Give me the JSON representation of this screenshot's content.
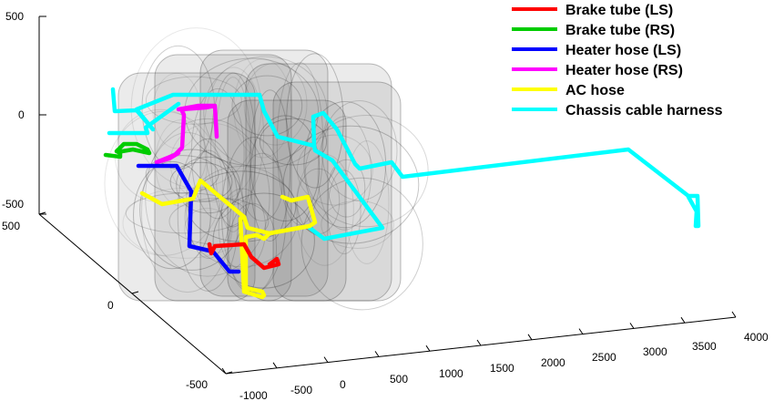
{
  "chart_data": {
    "type": "line3d",
    "title": "",
    "axes": {
      "x": {
        "label": "",
        "ticks": [
          "-1000",
          "-500",
          "0",
          "500",
          "1000",
          "1500",
          "2000",
          "2500",
          "3000",
          "3500",
          "4000"
        ]
      },
      "y": {
        "label": "",
        "ticks": [
          "500",
          "0",
          "-500"
        ]
      },
      "z": {
        "label": "",
        "ticks": [
          "500",
          "0",
          "-500"
        ]
      }
    },
    "grid": false,
    "legend_position": "top-right",
    "background_object": "semi-transparent gray engine/chassis mesh",
    "series": [
      {
        "name": "Brake tube (LS)",
        "color": "#ff0000"
      },
      {
        "name": "Brake tube (RS)",
        "color": "#00cc00"
      },
      {
        "name": "Heater hose (LS)",
        "color": "#0000ff"
      },
      {
        "name": "Heater hose (RS)",
        "color": "#ff00ff"
      },
      {
        "name": "AC hose",
        "color": "#ffff00"
      },
      {
        "name": "Chassis cable harness",
        "color": "#00ffff"
      }
    ]
  }
}
